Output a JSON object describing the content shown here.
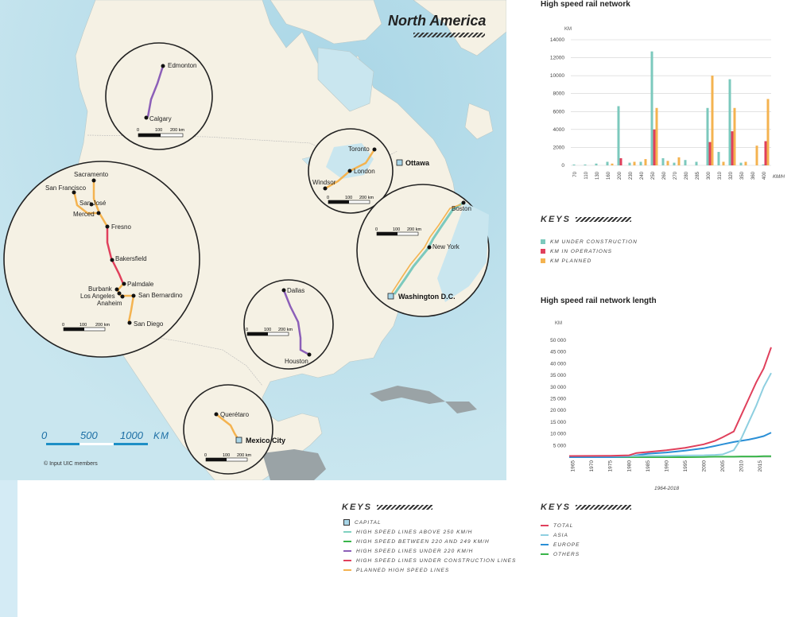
{
  "map": {
    "title": "North America",
    "credit": "© Input UIC members",
    "scale": {
      "ticks": [
        "0",
        "500",
        "1000"
      ],
      "unit": "KM"
    },
    "capitals": [
      {
        "name": "Ottawa"
      },
      {
        "name": "Washington D.C."
      },
      {
        "name": "Mexico City"
      }
    ],
    "insets": [
      {
        "id": "alberta",
        "cities": [
          "Edmonton",
          "Calgary"
        ],
        "scale": [
          "0",
          "100",
          "200 km"
        ]
      },
      {
        "id": "california",
        "cities": [
          "Sacramento",
          "San Francisco",
          "San José",
          "Merced",
          "Fresno",
          "Bakersfield",
          "Palmdale",
          "Burbank",
          "Los Angeles",
          "Anaheim",
          "San Bernardino",
          "San Diego"
        ],
        "scale": [
          "0",
          "100",
          "200 km"
        ]
      },
      {
        "id": "ontario",
        "cities": [
          "Toronto",
          "London",
          "Windsor"
        ],
        "scale": [
          "0",
          "100",
          "200 km"
        ]
      },
      {
        "id": "northeast",
        "cities": [
          "Boston",
          "New York"
        ],
        "scale": [
          "0",
          "100",
          "200 km"
        ]
      },
      {
        "id": "texas",
        "cities": [
          "Dallas",
          "Houston"
        ],
        "scale": [
          "0",
          "100",
          "200 km"
        ]
      },
      {
        "id": "mexico",
        "cities": [
          "Querétaro"
        ],
        "scale": [
          "0",
          "100",
          "200 km"
        ]
      }
    ],
    "keys": {
      "title": "KEYS",
      "items": [
        {
          "label": "CAPITAL",
          "kind": "capital",
          "color": "#a9d6e8"
        },
        {
          "label": "HIGH SPEED LINES ABOVE 250 KM/H",
          "kind": "line",
          "color": "#7fd1c0"
        },
        {
          "label": "HIGH SPEED BETWEEN 220 AND 249 KM/H",
          "kind": "line",
          "color": "#39b54a"
        },
        {
          "label": "HIGH SPEED LINES UNDER 220 KM/H",
          "kind": "line",
          "color": "#8c5fb8"
        },
        {
          "label": "HIGH SPEED LINES UNDER CONSTRUCTION LINES",
          "kind": "line",
          "color": "#e0405c"
        },
        {
          "label": "PLANNED HIGH SPEED LINES",
          "kind": "line",
          "color": "#f4b350"
        }
      ]
    }
  },
  "chart_data": [
    {
      "type": "bar",
      "title": "High speed rail network",
      "ylabel": "KM",
      "xlabel": "KM/H",
      "ylim": [
        0,
        14000
      ],
      "yticks": [
        "0",
        "2000",
        "4000",
        "6000",
        "8000",
        "10000",
        "12000",
        "14000"
      ],
      "categories": [
        "70",
        "110",
        "130",
        "160",
        "200",
        "230",
        "240",
        "250",
        "260",
        "270",
        "280",
        "285",
        "300",
        "310",
        "320",
        "350",
        "360",
        "400"
      ],
      "series": [
        {
          "name": "KM UNDER CONSTRUCTION",
          "color": "#7cc9bd",
          "values": [
            100,
            100,
            200,
            400,
            6600,
            300,
            400,
            12700,
            800,
            300,
            600,
            400,
            6400,
            1500,
            9600,
            300,
            0,
            100
          ]
        },
        {
          "name": "KM IN OPERATIONS",
          "color": "#e0405c",
          "values": [
            0,
            0,
            0,
            0,
            800,
            0,
            0,
            4000,
            0,
            0,
            0,
            0,
            2600,
            0,
            3800,
            0,
            0,
            2700
          ]
        },
        {
          "name": "KM PLANNED",
          "color": "#f4b350",
          "values": [
            0,
            0,
            0,
            200,
            0,
            400,
            700,
            6400,
            500,
            900,
            0,
            0,
            10000,
            400,
            6400,
            400,
            2200,
            7400
          ]
        }
      ],
      "keys_title": "KEYS"
    },
    {
      "type": "line",
      "title": "High speed rail network length",
      "ylabel": "KM",
      "xlabel": "1964-2018",
      "ylim": [
        0,
        50000
      ],
      "yticks": [
        "5 000",
        "10 000",
        "15 000",
        "20 000",
        "25 000",
        "30 000",
        "35 000",
        "40 000",
        "45 000",
        "50 000"
      ],
      "xticks": [
        "1965",
        "1970",
        "1975",
        "1980",
        "1985",
        "1990",
        "1995",
        "2000",
        "2005",
        "2010",
        "2015"
      ],
      "x": [
        1964,
        1975,
        1980,
        1982,
        1985,
        1990,
        1995,
        2000,
        2003,
        2005,
        2008,
        2010,
        2012,
        2014,
        2016,
        2018
      ],
      "series": [
        {
          "name": "TOTAL",
          "color": "#e0405c",
          "values": [
            500,
            600,
            800,
            1800,
            2200,
            3000,
            4000,
            5500,
            7000,
            8500,
            11000,
            18000,
            25000,
            32000,
            38000,
            47000
          ]
        },
        {
          "name": "ASIA",
          "color": "#8ecfe0",
          "values": [
            500,
            500,
            500,
            500,
            600,
            600,
            700,
            800,
            1000,
            1200,
            3000,
            8000,
            15000,
            22000,
            30000,
            36000
          ]
        },
        {
          "name": "EUROPE",
          "color": "#2a8fd6",
          "values": [
            0,
            0,
            300,
            800,
            1500,
            2000,
            2800,
            3800,
            4800,
            5500,
            6500,
            7000,
            7500,
            8200,
            9000,
            10500
          ]
        },
        {
          "name": "OTHERS",
          "color": "#39b54a",
          "values": [
            0,
            0,
            0,
            0,
            0,
            0,
            0,
            100,
            200,
            200,
            200,
            300,
            300,
            300,
            400,
            400
          ]
        }
      ],
      "keys_title": "KEYS"
    }
  ]
}
